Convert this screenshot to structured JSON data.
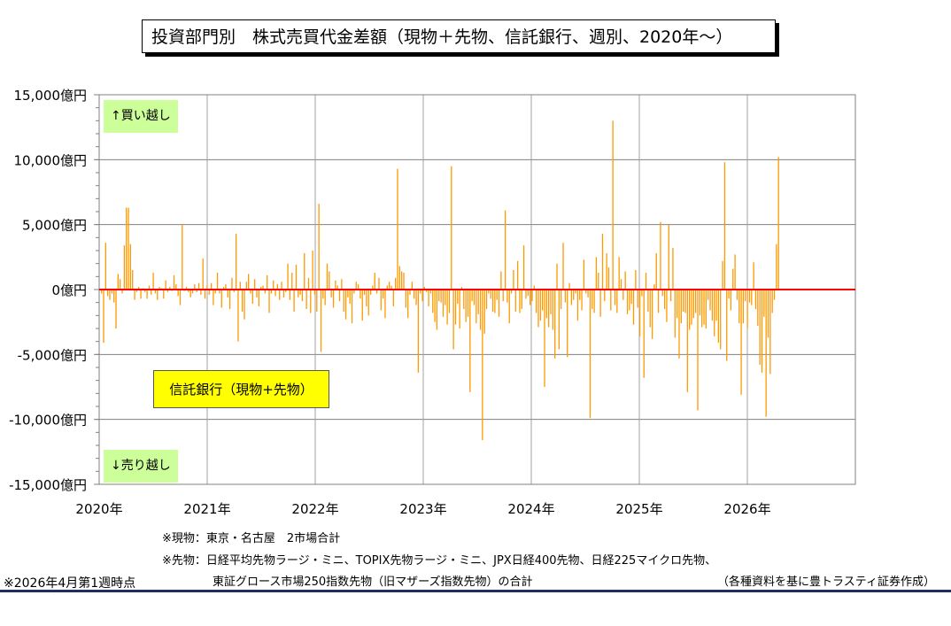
{
  "title": "投資部門別　株式売買代金差額（現物＋先物、信託銀行、週別、2020年～）",
  "labels": {
    "buy": "↑買い越し",
    "sell": "↓売り越し",
    "series_box": "信託銀行（現物+先物）"
  },
  "notes": {
    "genbutsu": "※現物：東京・名古屋　2市場合計",
    "sakimono1": "※先物：日経平均先物ラージ・ミニ、TOPIX先物ラージ・ミニ、JPX日経400先物、日経225マイクロ先物、",
    "sakimono2": "東証グロース市場250指数先物（旧マザーズ指数先物）の合計",
    "asof": "※2026年4月第1週時点",
    "source": "（各種資料を基に豊トラスティ証券作成）"
  },
  "colors": {
    "bar": "#ff9900",
    "zero_line": "#ff0000",
    "grid": "#808080",
    "rule": "#1f2f5f"
  },
  "chart_data": {
    "type": "bar",
    "title": "投資部門別　株式売買代金差額（現物＋先物、信託銀行、週別、2020年～）",
    "xlabel": "",
    "ylabel": "",
    "unit": "億円",
    "x_start": "2020年 第1週",
    "frequency": "weekly",
    "ylim": [
      -15000,
      15000
    ],
    "yticks": [
      15000,
      10000,
      5000,
      0,
      -5000,
      -10000,
      -15000
    ],
    "ytick_labels": [
      "15,000億円",
      "10,000億円",
      "5,000億円",
      "0億円",
      "-5,000億円",
      "-10,000億円",
      "-15,000億円"
    ],
    "xticks": [
      "2020年",
      "2021年",
      "2022年",
      "2023年",
      "2024年",
      "2025年",
      "2026年"
    ],
    "xlim_years": [
      2020,
      2027
    ],
    "grid": true,
    "series": [
      {
        "name": "信託銀行（現物+先物）",
        "values": [
          -300,
          -4100,
          3600,
          -500,
          -800,
          -300,
          -1000,
          -3000,
          1200,
          800,
          -300,
          3400,
          6300,
          6300,
          3500,
          1500,
          -800,
          -200,
          200,
          -700,
          100,
          -200,
          -700,
          300,
          -400,
          1300,
          -300,
          -800,
          200,
          100,
          -700,
          700,
          -200,
          200,
          -100,
          1100,
          400,
          -500,
          -1200,
          5000,
          -100,
          200,
          -200,
          -600,
          -300,
          400,
          -200,
          500,
          -400,
          2400,
          -700,
          300,
          -400,
          500,
          -1200,
          -300,
          1300,
          -300,
          -1400,
          200,
          400,
          -600,
          -1500,
          900,
          -200,
          4300,
          -4000,
          600,
          -1700,
          -2300,
          600,
          1200,
          -300,
          -1100,
          800,
          -600,
          -1300,
          200,
          300,
          -300,
          1100,
          -1800,
          -300,
          700,
          -500,
          400,
          -800,
          600,
          -600,
          -200,
          2000,
          -800,
          1300,
          -1700,
          1900,
          -600,
          -400,
          -900,
          2800,
          -1500,
          900,
          -1800,
          3000,
          -400,
          -1700,
          6600,
          -4800,
          -700,
          -1200,
          2000,
          1400,
          -600,
          -1400,
          700,
          300,
          -900,
          800,
          -1700,
          -2300,
          -600,
          -1100,
          -2600,
          -300,
          600,
          400,
          -700,
          -2400,
          -400,
          -1300,
          -2000,
          -400,
          300,
          1300,
          -300,
          900,
          -1600,
          -700,
          -2200,
          300,
          600,
          300,
          -1300,
          900,
          9300,
          1800,
          1400,
          1300,
          -1400,
          -2200,
          -400,
          600,
          -700,
          -1200,
          -6400,
          -300,
          -900,
          200,
          -200,
          -1300,
          -300,
          -1800,
          -2500,
          -3100,
          -900,
          -1000,
          -2100,
          -1200,
          -2700,
          -1800,
          9500,
          -4600,
          -2700,
          -1100,
          -3000,
          200,
          -1500,
          -2500,
          -2100,
          -7900,
          -900,
          -1200,
          -2600,
          -1900,
          -3100,
          -11600,
          -3400,
          -1500,
          -300,
          -700,
          -1700,
          -1800,
          -800,
          -2100,
          1400,
          -900,
          6100,
          -1000,
          -2600,
          -300,
          1500,
          -1700,
          2200,
          -1800,
          -1500,
          3400,
          -700,
          -500,
          -1200,
          -900,
          300,
          -1800,
          -2900,
          -2400,
          -1600,
          -7500,
          -2200,
          -2900,
          -1900,
          -3100,
          -5300,
          2000,
          -4600,
          -1500,
          3600,
          -1000,
          -5200,
          500,
          -1200,
          -800,
          -300,
          -2400,
          -800,
          -1600,
          2300,
          -300,
          -600,
          -9900,
          -1500,
          -1800,
          2500,
          1300,
          -2100,
          4300,
          -900,
          2800,
          1700,
          -1600,
          13000,
          -1200,
          -1800,
          2500,
          800,
          -800,
          1400,
          -1900,
          -1600,
          -1100,
          -2700,
          1500,
          -1400,
          -3600,
          -500,
          -6800,
          1300,
          -1700,
          -2900,
          -3800,
          400,
          2800,
          -1800,
          5200,
          -500,
          -1500,
          -2500,
          5000,
          -900,
          3200,
          -3700,
          -2200,
          -5300,
          -2600,
          -1700,
          -1800,
          -7900,
          -3100,
          -2700,
          -2200,
          -1800,
          -9300,
          -2000,
          -2900,
          -2700,
          -3000,
          -800,
          -1600,
          -2400,
          -3600,
          -2400,
          -4100,
          -4600,
          2200,
          9800,
          -5500,
          -700,
          -1600,
          1600,
          2700,
          -800,
          -2600,
          -8100,
          -2600,
          -900,
          -3000,
          -1000,
          -1200,
          2100,
          -1500,
          -2800,
          -5800,
          -6400,
          -2100,
          -9800,
          -3700,
          -6500,
          -1800,
          -800,
          3500,
          10200
        ]
      }
    ]
  }
}
